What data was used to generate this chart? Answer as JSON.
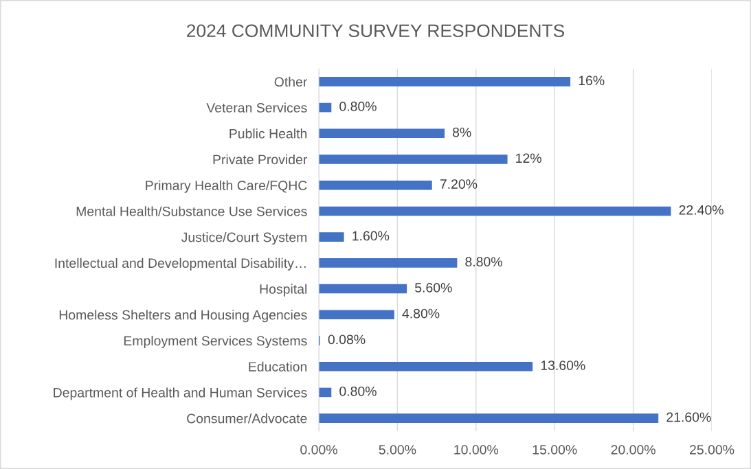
{
  "chart_data": {
    "type": "bar",
    "orientation": "horizontal",
    "title": "2024 COMMUNITY SURVEY RESPONDENTS",
    "categories": [
      "Other",
      "Veteran Services",
      "Public Health",
      "Private Provider",
      "Primary Health Care/FQHC",
      "Mental Health/Substance Use Services",
      "Justice/Court System",
      "Intellectual and Developmental Disability…",
      "Hospital",
      "Homeless Shelters and Housing Agencies",
      "Employment Services Systems",
      "Education",
      "Department of Health and Human Services",
      "Consumer/Advocate"
    ],
    "values": [
      16,
      0.8,
      8,
      12,
      7.2,
      22.4,
      1.6,
      8.8,
      5.6,
      4.8,
      0.08,
      13.6,
      0.8,
      21.6
    ],
    "value_labels": [
      "16%",
      "0.80%",
      "8%",
      "12%",
      "7.20%",
      "22.40%",
      "1.60%",
      "8.80%",
      "5.60%",
      "4.80%",
      "0.08%",
      "13.60%",
      "0.80%",
      "21.60%"
    ],
    "color": "#4472c4",
    "xlim": [
      0,
      25
    ],
    "xticks": [
      {
        "value": 0,
        "label": "0.00%"
      },
      {
        "value": 5,
        "label": "5.00%"
      },
      {
        "value": 10,
        "label": "10.00%"
      },
      {
        "value": 15,
        "label": "15.00%"
      },
      {
        "value": 20,
        "label": "20.00%"
      },
      {
        "value": 25,
        "label": "25.00%"
      }
    ],
    "grid": "x",
    "legend": false
  }
}
